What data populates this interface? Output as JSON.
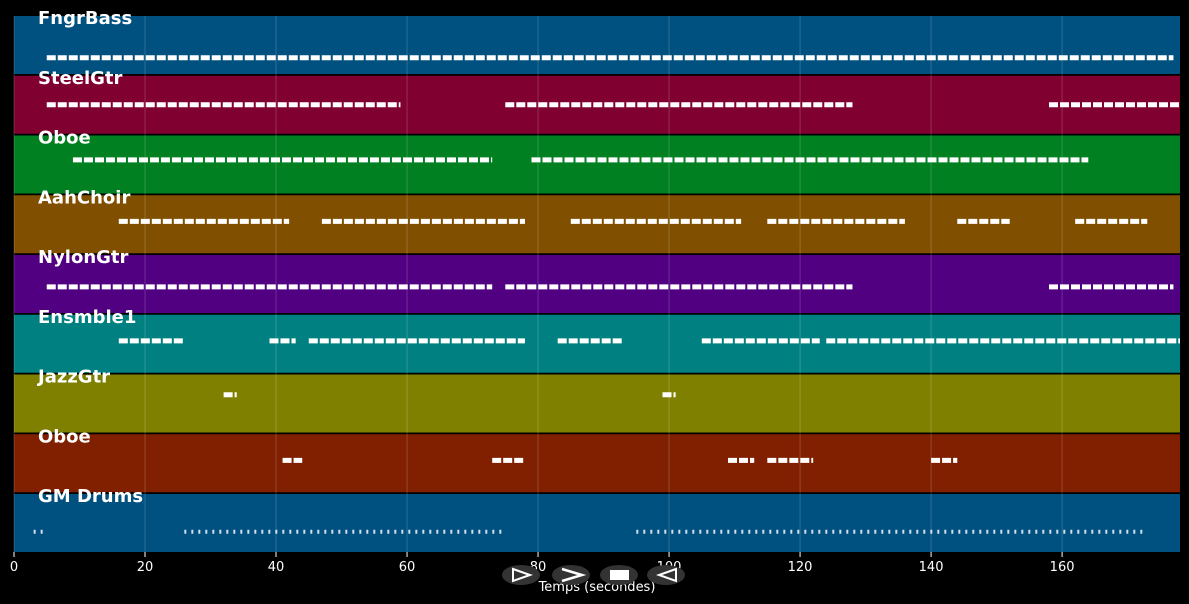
{
  "axis": {
    "xlim": [
      0,
      178
    ],
    "xticks": [
      0,
      20,
      40,
      60,
      80,
      100,
      120,
      140,
      160
    ],
    "xlabel": "Temps (secondes)"
  },
  "tracks": [
    {
      "name": "FngrBass",
      "color": "#005080",
      "spans": [
        [
          5,
          177
        ]
      ]
    },
    {
      "name": "SteelGtr",
      "color": "#800030",
      "spans": [
        [
          5,
          59
        ],
        [
          75,
          128
        ],
        [
          158,
          178
        ]
      ]
    },
    {
      "name": "Oboe",
      "color": "#008020",
      "spans": [
        [
          9,
          73
        ],
        [
          79,
          164
        ]
      ]
    },
    {
      "name": "AahChoir",
      "color": "#805000",
      "spans": [
        [
          16,
          42
        ],
        [
          47,
          78
        ],
        [
          85,
          111
        ],
        [
          115,
          136
        ],
        [
          144,
          152
        ],
        [
          162,
          173
        ]
      ]
    },
    {
      "name": "NylonGtr",
      "color": "#500080",
      "spans": [
        [
          5,
          73
        ],
        [
          75,
          128
        ],
        [
          158,
          177
        ]
      ]
    },
    {
      "name": "Ensmble1",
      "color": "#008080",
      "spans": [
        [
          16,
          26
        ],
        [
          39,
          43
        ],
        [
          45,
          78
        ],
        [
          83,
          93
        ],
        [
          105,
          123
        ],
        [
          124,
          178
        ]
      ]
    },
    {
      "name": "JazzGtr",
      "color": "#808000",
      "spans": [
        [
          32,
          34
        ],
        [
          99,
          101
        ]
      ]
    },
    {
      "name": "Oboe",
      "color": "#802000",
      "spans": [
        [
          41,
          44
        ],
        [
          73,
          78
        ],
        [
          109,
          113
        ],
        [
          115,
          122
        ],
        [
          140,
          144
        ]
      ]
    },
    {
      "name": "GM Drums",
      "color": "#005080",
      "spans": [
        [
          3,
          5
        ],
        [
          26,
          75
        ],
        [
          95,
          173
        ]
      ]
    }
  ]
}
